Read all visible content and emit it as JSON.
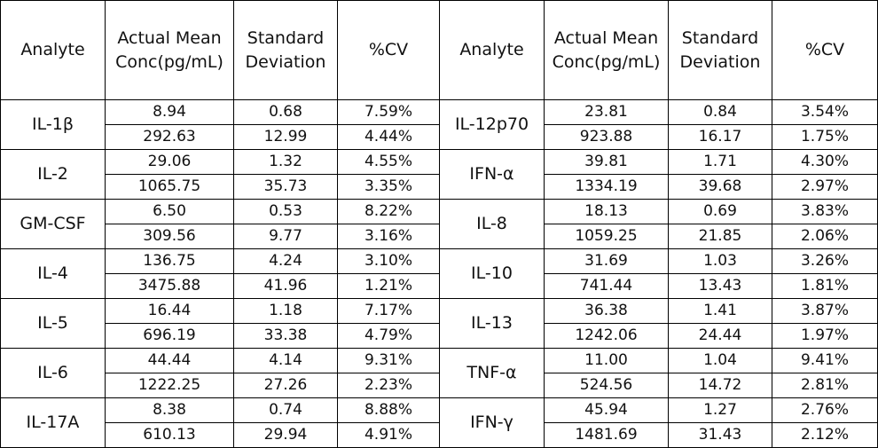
{
  "headers": [
    "Analyte",
    "Actual Mean Conc(pg/mL)",
    "Standard Deviation",
    "%CV",
    "Analyte",
    "Actual Mean Conc(pg/mL)",
    "Standard Deviation",
    "%CV"
  ],
  "left": [
    {
      "analyte": "IL-1β",
      "rows": [
        {
          "mean": "8.94",
          "sd": "0.68",
          "cv": "7.59%"
        },
        {
          "mean": "292.63",
          "sd": "12.99",
          "cv": "4.44%"
        }
      ]
    },
    {
      "analyte": "IL-2",
      "rows": [
        {
          "mean": "29.06",
          "sd": "1.32",
          "cv": "4.55%"
        },
        {
          "mean": "1065.75",
          "sd": "35.73",
          "cv": "3.35%"
        }
      ]
    },
    {
      "analyte": "GM-CSF",
      "rows": [
        {
          "mean": "6.50",
          "sd": "0.53",
          "cv": "8.22%"
        },
        {
          "mean": "309.56",
          "sd": "9.77",
          "cv": "3.16%"
        }
      ]
    },
    {
      "analyte": "IL-4",
      "rows": [
        {
          "mean": "136.75",
          "sd": "4.24",
          "cv": "3.10%"
        },
        {
          "mean": "3475.88",
          "sd": "41.96",
          "cv": "1.21%"
        }
      ]
    },
    {
      "analyte": "IL-5",
      "rows": [
        {
          "mean": "16.44",
          "sd": "1.18",
          "cv": "7.17%"
        },
        {
          "mean": "696.19",
          "sd": "33.38",
          "cv": "4.79%"
        }
      ]
    },
    {
      "analyte": "IL-6",
      "rows": [
        {
          "mean": "44.44",
          "sd": "4.14",
          "cv": "9.31%"
        },
        {
          "mean": "1222.25",
          "sd": "27.26",
          "cv": "2.23%"
        }
      ]
    },
    {
      "analyte": "IL-17A",
      "rows": [
        {
          "mean": "8.38",
          "sd": "0.74",
          "cv": "8.88%"
        },
        {
          "mean": "610.13",
          "sd": "29.94",
          "cv": "4.91%"
        }
      ]
    }
  ],
  "right": [
    {
      "analyte": "IL-12p70",
      "rows": [
        {
          "mean": "23.81",
          "sd": "0.84",
          "cv": "3.54%"
        },
        {
          "mean": "923.88",
          "sd": "16.17",
          "cv": "1.75%"
        }
      ]
    },
    {
      "analyte": "IFN-α",
      "rows": [
        {
          "mean": "39.81",
          "sd": "1.71",
          "cv": "4.30%"
        },
        {
          "mean": "1334.19",
          "sd": "39.68",
          "cv": "2.97%"
        }
      ]
    },
    {
      "analyte": "IL-8",
      "rows": [
        {
          "mean": "18.13",
          "sd": "0.69",
          "cv": "3.83%"
        },
        {
          "mean": "1059.25",
          "sd": "21.85",
          "cv": "2.06%"
        }
      ]
    },
    {
      "analyte": "IL-10",
      "rows": [
        {
          "mean": "31.69",
          "sd": "1.03",
          "cv": "3.26%"
        },
        {
          "mean": "741.44",
          "sd": "13.43",
          "cv": "1.81%"
        }
      ]
    },
    {
      "analyte": "IL-13",
      "rows": [
        {
          "mean": "36.38",
          "sd": "1.41",
          "cv": "3.87%"
        },
        {
          "mean": "1242.06",
          "sd": "24.44",
          "cv": "1.97%"
        }
      ]
    },
    {
      "analyte": "TNF-α",
      "rows": [
        {
          "mean": "11.00",
          "sd": "1.04",
          "cv": "9.41%"
        },
        {
          "mean": "524.56",
          "sd": "14.72",
          "cv": "2.81%"
        }
      ]
    },
    {
      "analyte": "IFN-γ",
      "rows": [
        {
          "mean": "45.94",
          "sd": "1.27",
          "cv": "2.76%"
        },
        {
          "mean": "1481.69",
          "sd": "31.43",
          "cv": "2.12%"
        }
      ]
    }
  ]
}
